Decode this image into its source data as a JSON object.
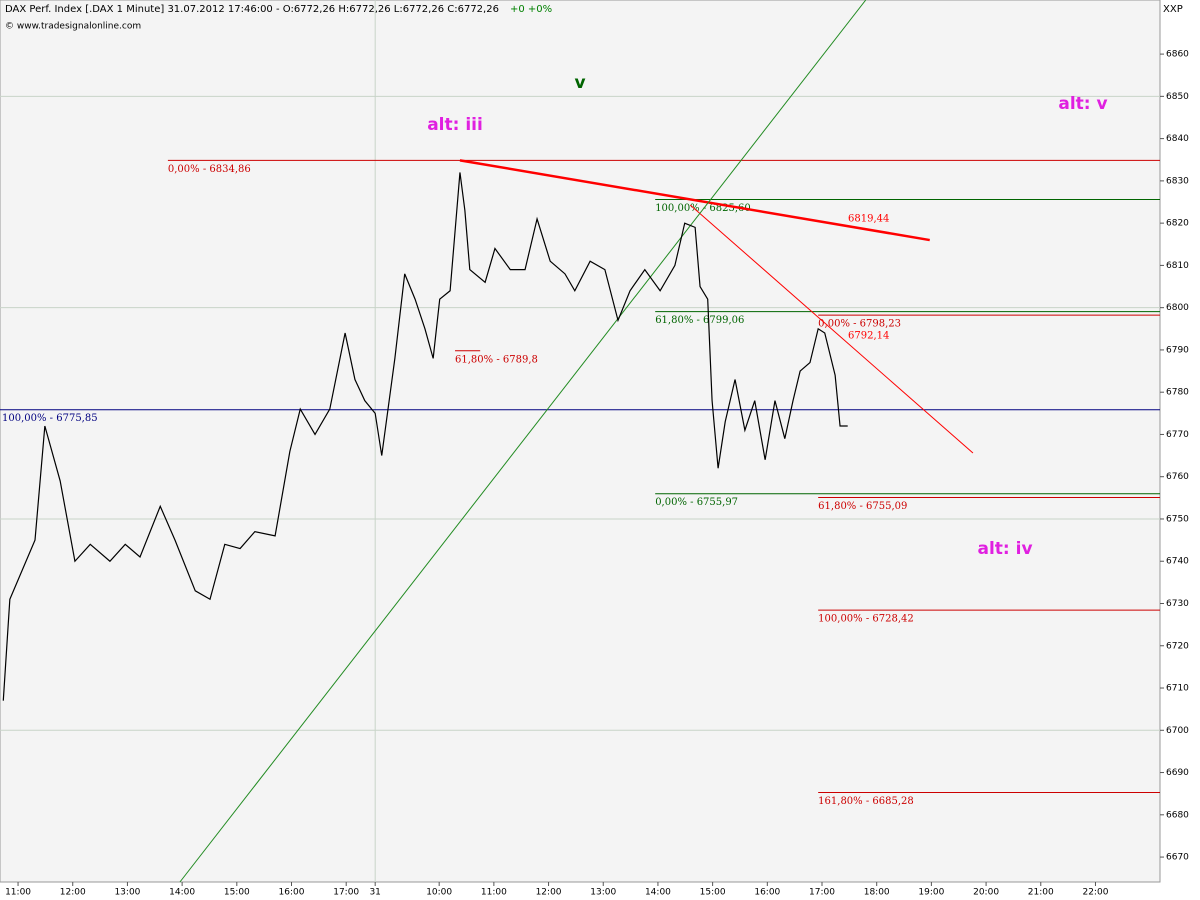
{
  "chart_data": {
    "type": "line",
    "title": "DAX Perf. Index [.DAX  1 Minute] 31.07.2012 17:46:00 - O:6772,26 H:6772,26 L:6772,26 C:6772,26",
    "change": "+0 +0%",
    "subtitle": "© www.tradesignalonline.com",
    "corner_label": "XXP",
    "color": "#000000",
    "x": [
      -0.27,
      -0.15,
      0.31,
      0.49,
      0.77,
      1.04,
      1.32,
      1.68,
      1.96,
      2.23,
      2.6,
      2.87,
      3.24,
      3.51,
      3.78,
      4.06,
      4.33,
      4.7,
      4.97,
      5.16,
      5.43,
      5.7,
      5.98,
      6.16,
      6.34,
      6.53,
      6.65,
      6.89,
      7.07,
      7.26,
      7.44,
      7.59,
      7.71,
      7.9,
      8.08,
      8.17,
      8.26,
      8.54,
      8.72,
      9.0,
      9.27,
      9.49,
      9.73,
      10.0,
      10.18,
      10.46,
      10.73,
      10.97,
      11.19,
      11.46,
      11.74,
      12.01,
      12.19,
      12.38,
      12.47,
      12.61,
      12.69,
      12.8,
      12.93,
      13.11,
      13.29,
      13.47,
      13.66,
      13.84,
      14.02,
      14.17,
      14.3,
      14.48,
      14.63,
      14.75,
      14.94,
      15.03,
      15.17
    ],
    "values": [
      6707,
      6731,
      6745,
      6772,
      6759,
      6740,
      6744,
      6740,
      6744,
      6741,
      6753,
      6745,
      6733,
      6731,
      6744,
      6743,
      6747,
      6746,
      6766,
      6776,
      6770,
      6776,
      6794,
      6783,
      6778,
      6775,
      6765,
      6788,
      6808,
      6802,
      6795,
      6788,
      6802,
      6804,
      6832,
      6823,
      6809,
      6806,
      6814,
      6809,
      6809,
      6821,
      6811,
      6808,
      6804,
      6811,
      6809,
      6797,
      6804,
      6809,
      6804,
      6810,
      6820,
      6819,
      6805,
      6802,
      6778,
      6762,
      6773,
      6783,
      6771,
      6778,
      6764,
      6778,
      6769,
      6778,
      6785,
      6787,
      6795,
      6794,
      6784,
      6772,
      6772
    ],
    "xlim": [
      -0.33,
      20.88
    ],
    "ylim": [
      6664.1,
      6872.8
    ],
    "xticks": [
      {
        "value": 0,
        "label": "11:00"
      },
      {
        "value": 1,
        "label": "12:00"
      },
      {
        "value": 2,
        "label": "13:00"
      },
      {
        "value": 3,
        "label": "14:00"
      },
      {
        "value": 4,
        "label": "15:00"
      },
      {
        "value": 5,
        "label": "16:00"
      },
      {
        "value": 6,
        "label": "17:00"
      },
      {
        "value": 6.53,
        "label": "31"
      },
      {
        "value": 7.7,
        "label": "10:00"
      },
      {
        "value": 8.7,
        "label": "11:00"
      },
      {
        "value": 9.7,
        "label": "12:00"
      },
      {
        "value": 10.7,
        "label": "13:00"
      },
      {
        "value": 11.7,
        "label": "14:00"
      },
      {
        "value": 12.7,
        "label": "15:00"
      },
      {
        "value": 13.7,
        "label": "16:00"
      },
      {
        "value": 14.7,
        "label": "17:00"
      },
      {
        "value": 15.7,
        "label": "18:00"
      },
      {
        "value": 16.7,
        "label": "19:00"
      },
      {
        "value": 17.7,
        "label": "20:00"
      },
      {
        "value": 18.7,
        "label": "21:00"
      },
      {
        "value": 19.7,
        "label": "22:00"
      }
    ],
    "yticks": [
      6670,
      6680,
      6690,
      6700,
      6710,
      6720,
      6730,
      6740,
      6750,
      6760,
      6770,
      6780,
      6790,
      6800,
      6810,
      6820,
      6830,
      6840,
      6850,
      6860
    ],
    "ygrid": [
      6700,
      6750,
      6800,
      6850
    ],
    "xgrid": [
      6.53
    ],
    "levels": [
      {
        "label": "0,00% - 6834,86",
        "value": 6834.86,
        "x_start": 2.74,
        "color": "#cc0000"
      },
      {
        "label": "100,00% - 6775,85",
        "value": 6775.85,
        "x_start": -0.33,
        "color": "#000080"
      },
      {
        "label": "61,80% - 6789,8",
        "value": 6789.8,
        "x_start": 7.99,
        "x_end": 8.45,
        "color": "#cc0000"
      },
      {
        "label": "100,00% - 6825,60",
        "value": 6825.6,
        "x_start": 11.65,
        "color": "#006400"
      },
      {
        "label": "61,80% - 6799,06",
        "value": 6799.06,
        "x_start": 11.65,
        "color": "#006400"
      },
      {
        "label": "0,00% - 6755,97",
        "value": 6755.97,
        "x_start": 11.65,
        "color": "#006400"
      },
      {
        "label": "0,00% - 6798,23",
        "value": 6798.23,
        "x_start": 14.63,
        "color": "#cc0000"
      },
      {
        "label": "61,80% - 6755,09",
        "value": 6755.09,
        "x_start": 14.63,
        "color": "#cc0000"
      },
      {
        "label": "100,00% - 6728,42",
        "value": 6728.42,
        "x_start": 14.63,
        "color": "#cc0000"
      },
      {
        "label": "161,80% - 6685,28",
        "value": 6685.28,
        "x_start": 14.63,
        "color": "#cc0000"
      }
    ],
    "trend_lines": [
      {
        "x": [
          8.08,
          16.67
        ],
        "values": [
          6834.86,
          6816
        ],
        "color": "#ff0000",
        "label": "6819,44"
      },
      {
        "x": [
          12.29,
          17.46
        ],
        "values": [
          6824.3,
          6765.6
        ],
        "color": "#ff0000",
        "label": "6792,14"
      },
      {
        "x": [
          2.96,
          15.5
        ],
        "values": [
          6664.1,
          6872.8
        ],
        "color": "#228b22"
      }
    ],
    "annotations": [
      {
        "text": "v",
        "color": "#006400"
      },
      {
        "text": "alt: iii",
        "color": "#e020e0"
      },
      {
        "text": "alt: v",
        "color": "#e020e0"
      },
      {
        "text": "alt: iv",
        "color": "#e020e0"
      }
    ]
  }
}
